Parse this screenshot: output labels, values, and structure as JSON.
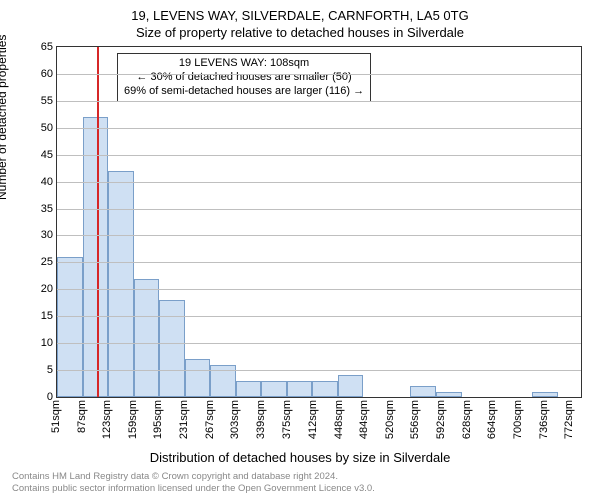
{
  "title_line1": "19, LEVENS WAY, SILVERDALE, CARNFORTH, LA5 0TG",
  "title_line2": "Size of property relative to detached houses in Silverdale",
  "ylabel": "Number of detached properties",
  "xlabel": "Distribution of detached houses by size in Silverdale",
  "footer_line1": "Contains HM Land Registry data © Crown copyright and database right 2024.",
  "footer_line2": "Contains public sector information licensed under the Open Government Licence v3.0.",
  "annotation": {
    "line1": "19 LEVENS WAY: 108sqm",
    "line2": "← 30% of detached houses are smaller (50)",
    "line3": "69% of semi-detached houses are larger (116) →"
  },
  "chart": {
    "type": "histogram",
    "x_min": 51,
    "x_max": 790,
    "x_tick_labels": [
      "51sqm",
      "87sqm",
      "123sqm",
      "159sqm",
      "195sqm",
      "231sqm",
      "267sqm",
      "303sqm",
      "339sqm",
      "375sqm",
      "412sqm",
      "448sqm",
      "484sqm",
      "520sqm",
      "556sqm",
      "592sqm",
      "628sqm",
      "664sqm",
      "700sqm",
      "736sqm",
      "772sqm"
    ],
    "x_tick_values": [
      51,
      87,
      123,
      159,
      195,
      231,
      267,
      303,
      339,
      375,
      412,
      448,
      484,
      520,
      556,
      592,
      628,
      664,
      700,
      736,
      772
    ],
    "y_min": 0,
    "y_max": 65,
    "y_tick_step": 5,
    "y_ticks": [
      0,
      5,
      10,
      15,
      20,
      25,
      30,
      35,
      40,
      45,
      50,
      55,
      60,
      65
    ],
    "bar_values": [
      26,
      52,
      42,
      22,
      18,
      7,
      6,
      3,
      3,
      3,
      3,
      4,
      0,
      0,
      2,
      1,
      0,
      0,
      0,
      1,
      0
    ],
    "bar_fill": "#cfe0f3",
    "bar_border": "#7a9fc9",
    "grid_color": "#bfbfbf",
    "axis_color": "#333333",
    "marker_value": 108,
    "marker_color": "#d62728",
    "background": "#ffffff",
    "title_fontsize": 13,
    "label_fontsize": 13,
    "tick_fontsize": 11,
    "annot_fontsize": 11
  }
}
